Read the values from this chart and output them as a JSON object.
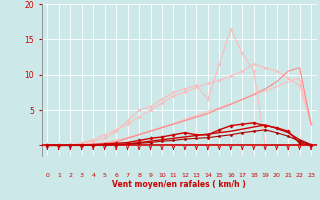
{
  "xlabel": "Vent moyen/en rafales ( km/h )",
  "xlim": [
    -0.5,
    23.5
  ],
  "ylim": [
    -1.5,
    20
  ],
  "yticks": [
    0,
    5,
    10,
    15,
    20
  ],
  "xticks": [
    0,
    1,
    2,
    3,
    4,
    5,
    6,
    7,
    8,
    9,
    10,
    11,
    12,
    13,
    14,
    15,
    16,
    17,
    18,
    19,
    20,
    21,
    22,
    23
  ],
  "bg_color": "#cce8e8",
  "grid_color": "#ffffff",
  "axis_color": "#cc0000",
  "xlabel_color": "#cc0000",
  "tick_color": "#cc0000",
  "series": [
    {
      "x": [
        0,
        1,
        2,
        3,
        4,
        5,
        6,
        7,
        8,
        9,
        10,
        11,
        12,
        13,
        14,
        15,
        16,
        17,
        18,
        19,
        20,
        21,
        22,
        23
      ],
      "y": [
        0,
        0,
        0,
        0.1,
        0.2,
        0.4,
        0.7,
        1.1,
        1.6,
        2.1,
        2.6,
        3.1,
        3.7,
        4.2,
        4.8,
        5.3,
        5.9,
        6.5,
        7.1,
        7.7,
        8.3,
        9.0,
        9.5,
        3.0
      ],
      "color": "#ffbbbb",
      "lw": 0.8,
      "marker": null
    },
    {
      "x": [
        0,
        1,
        2,
        3,
        4,
        5,
        6,
        7,
        8,
        9,
        10,
        11,
        12,
        13,
        14,
        15,
        16,
        17,
        18,
        19,
        20,
        21,
        22,
        23
      ],
      "y": [
        0,
        0,
        0,
        0.3,
        0.8,
        1.5,
        2.2,
        3.0,
        4.0,
        5.0,
        6.0,
        7.0,
        7.5,
        8.2,
        8.8,
        9.2,
        9.8,
        10.5,
        11.5,
        11.0,
        10.5,
        9.5,
        8.5,
        3.0
      ],
      "color": "#ffbbbb",
      "lw": 0.8,
      "marker": "D",
      "markersize": 1.5,
      "markercolor": "#ffbbbb"
    },
    {
      "x": [
        0,
        1,
        2,
        3,
        4,
        5,
        6,
        7,
        8,
        9,
        10,
        11,
        12,
        13,
        14,
        15,
        16,
        17,
        18,
        19,
        20,
        21,
        22,
        23
      ],
      "y": [
        0,
        0,
        0,
        0.1,
        0.2,
        0.3,
        0.5,
        1.0,
        1.5,
        2.0,
        2.5,
        3.0,
        3.5,
        4.0,
        4.5,
        5.2,
        5.8,
        6.5,
        7.2,
        8.0,
        9.0,
        10.5,
        11.0,
        3.0
      ],
      "color": "#ff8888",
      "lw": 0.8,
      "marker": null
    },
    {
      "x": [
        0,
        1,
        2,
        3,
        4,
        5,
        6,
        7,
        8,
        9,
        10,
        11,
        12,
        13,
        14,
        15,
        16,
        17,
        18,
        19,
        20,
        21,
        22,
        23
      ],
      "y": [
        0,
        0,
        0,
        0.3,
        0.6,
        1.0,
        2.0,
        3.5,
        5.0,
        5.5,
        6.5,
        7.5,
        8.0,
        8.5,
        6.5,
        11.5,
        16.5,
        13.0,
        10.5,
        0.0,
        0.0,
        0.0,
        0.0,
        0.0
      ],
      "color": "#ffbbbb",
      "lw": 0.8,
      "marker": "D",
      "markersize": 1.5,
      "markercolor": "#ffbbbb"
    },
    {
      "x": [
        0,
        1,
        2,
        3,
        4,
        5,
        6,
        7,
        8,
        9,
        10,
        11,
        12,
        13,
        14,
        15,
        16,
        17,
        18,
        19,
        20,
        21,
        22,
        23
      ],
      "y": [
        0,
        0,
        0,
        0.05,
        0.1,
        0.2,
        0.3,
        0.4,
        0.7,
        1.0,
        1.2,
        1.5,
        1.8,
        1.5,
        1.5,
        2.2,
        2.8,
        3.0,
        3.2,
        2.8,
        2.5,
        2.0,
        0.3,
        0.05
      ],
      "color": "#cc0000",
      "lw": 1.0,
      "marker": "D",
      "markersize": 1.8,
      "markercolor": "#cc0000"
    },
    {
      "x": [
        0,
        1,
        2,
        3,
        4,
        5,
        6,
        7,
        8,
        9,
        10,
        11,
        12,
        13,
        14,
        15,
        16,
        17,
        18,
        19,
        20,
        21,
        22,
        23
      ],
      "y": [
        0,
        0,
        0,
        0.0,
        0.05,
        0.1,
        0.15,
        0.2,
        0.4,
        0.6,
        0.8,
        1.0,
        1.2,
        1.4,
        1.6,
        1.8,
        2.0,
        2.3,
        2.6,
        2.9,
        2.4,
        1.8,
        0.8,
        0.1
      ],
      "color": "#cc0000",
      "lw": 1.0,
      "marker": null
    },
    {
      "x": [
        0,
        1,
        2,
        3,
        4,
        5,
        6,
        7,
        8,
        9,
        10,
        11,
        12,
        13,
        14,
        15,
        16,
        17,
        18,
        19,
        20,
        21,
        22,
        23
      ],
      "y": [
        0,
        0,
        0,
        0.0,
        0.0,
        0.05,
        0.1,
        0.15,
        0.3,
        0.4,
        0.6,
        0.7,
        0.9,
        1.0,
        1.1,
        1.3,
        1.5,
        1.8,
        2.0,
        2.2,
        1.8,
        1.3,
        0.6,
        0.05
      ],
      "color": "#aa0000",
      "lw": 0.8,
      "marker": "D",
      "markersize": 1.5,
      "markercolor": "#aa0000"
    }
  ],
  "arrow_color": "#cc0000"
}
